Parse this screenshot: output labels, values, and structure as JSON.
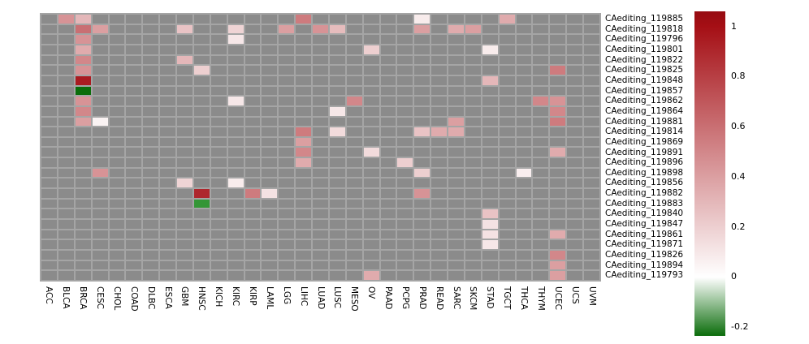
{
  "chart_data": {
    "type": "heatmap",
    "title": "",
    "columns": [
      "ACC",
      "BLCA",
      "BRCA",
      "CESC",
      "CHOL",
      "COAD",
      "DLBC",
      "ESCA",
      "GBM",
      "HNSC",
      "KICH",
      "KIRC",
      "KIRP",
      "LAML",
      "LGG",
      "LIHC",
      "LUAD",
      "LUSC",
      "MESO",
      "OV",
      "PAAD",
      "PCPG",
      "PRAD",
      "READ",
      "SARC",
      "SKCM",
      "STAD",
      "TGCT",
      "THCA",
      "THYM",
      "UCEC",
      "UCS",
      "UVM"
    ],
    "rows": [
      "CAediting_119885",
      "CAediting_119818",
      "CAediting_119796",
      "CAediting_119801",
      "CAediting_119822",
      "CAediting_119825",
      "CAediting_119848",
      "CAediting_119857",
      "CAediting_119862",
      "CAediting_119864",
      "CAediting_119881",
      "CAediting_119814",
      "CAediting_119869",
      "CAediting_119891",
      "CAediting_119896",
      "CAediting_119898",
      "CAediting_119856",
      "CAediting_119882",
      "CAediting_119883",
      "CAediting_119840",
      "CAediting_119847",
      "CAediting_119861",
      "CAediting_119871",
      "CAediting_119826",
      "CAediting_119894",
      "CAediting_119793"
    ],
    "cells": [
      {
        "row": "CAediting_119885",
        "col": "BLCA",
        "value": 0.45,
        "color": "#d79396"
      },
      {
        "row": "CAediting_119885",
        "col": "BRCA",
        "value": 0.3,
        "color": "#e4b7b9"
      },
      {
        "row": "CAediting_119885",
        "col": "LIHC",
        "value": 0.55,
        "color": "#ce7b7e"
      },
      {
        "row": "CAediting_119885",
        "col": "PRAD",
        "value": 0.08,
        "color": "#f8ecec"
      },
      {
        "row": "CAediting_119885",
        "col": "TGCT",
        "value": 0.35,
        "color": "#e0abad"
      },
      {
        "row": "CAediting_119818",
        "col": "BRCA",
        "value": 0.6,
        "color": "#c96f73"
      },
      {
        "row": "CAediting_119818",
        "col": "CESC",
        "value": 0.4,
        "color": "#db9fa1"
      },
      {
        "row": "CAediting_119818",
        "col": "GBM",
        "value": 0.25,
        "color": "#e9c3c5"
      },
      {
        "row": "CAediting_119818",
        "col": "KIRC",
        "value": 0.18,
        "color": "#efd4d5"
      },
      {
        "row": "CAediting_119818",
        "col": "LGG",
        "value": 0.4,
        "color": "#db9fa1"
      },
      {
        "row": "CAediting_119818",
        "col": "LUAD",
        "value": 0.45,
        "color": "#d79396"
      },
      {
        "row": "CAediting_119818",
        "col": "LUSC",
        "value": 0.28,
        "color": "#e6bcbd"
      },
      {
        "row": "CAediting_119818",
        "col": "PRAD",
        "value": 0.4,
        "color": "#db9fa1"
      },
      {
        "row": "CAediting_119818",
        "col": "SARC",
        "value": 0.35,
        "color": "#e0abad"
      },
      {
        "row": "CAediting_119818",
        "col": "SKCM",
        "value": 0.4,
        "color": "#db9fa1"
      },
      {
        "row": "CAediting_119796",
        "col": "BRCA",
        "value": 0.45,
        "color": "#d79396"
      },
      {
        "row": "CAediting_119796",
        "col": "KIRC",
        "value": 0.1,
        "color": "#f6e7e8"
      },
      {
        "row": "CAediting_119801",
        "col": "BRCA",
        "value": 0.35,
        "color": "#e0abad"
      },
      {
        "row": "CAediting_119801",
        "col": "OV",
        "value": 0.2,
        "color": "#edcfd0"
      },
      {
        "row": "CAediting_119801",
        "col": "STAD",
        "value": 0.08,
        "color": "#f8ecec"
      },
      {
        "row": "CAediting_119822",
        "col": "BRCA",
        "value": 0.5,
        "color": "#d2878a"
      },
      {
        "row": "CAediting_119822",
        "col": "GBM",
        "value": 0.3,
        "color": "#e4b7b9"
      },
      {
        "row": "CAediting_119825",
        "col": "BRCA",
        "value": 0.45,
        "color": "#d79396"
      },
      {
        "row": "CAediting_119825",
        "col": "HNSC",
        "value": 0.2,
        "color": "#edcfd0"
      },
      {
        "row": "CAediting_119825",
        "col": "UCEC",
        "value": 0.55,
        "color": "#ce7b7e"
      },
      {
        "row": "CAediting_119848",
        "col": "BRCA",
        "value": 0.95,
        "color": "#aa1b21"
      },
      {
        "row": "CAediting_119848",
        "col": "STAD",
        "value": 0.3,
        "color": "#e4b7b9"
      },
      {
        "row": "CAediting_119857",
        "col": "BRCA",
        "value": -0.3,
        "color": "#0b6d0b"
      },
      {
        "row": "CAediting_119862",
        "col": "BRCA",
        "value": 0.45,
        "color": "#d79396"
      },
      {
        "row": "CAediting_119862",
        "col": "KIRC",
        "value": 0.1,
        "color": "#f6e7e8"
      },
      {
        "row": "CAediting_119862",
        "col": "MESO",
        "value": 0.5,
        "color": "#d2878a"
      },
      {
        "row": "CAediting_119862",
        "col": "THYM",
        "value": 0.5,
        "color": "#d2878a"
      },
      {
        "row": "CAediting_119862",
        "col": "UCEC",
        "value": 0.45,
        "color": "#d79396"
      },
      {
        "row": "CAediting_119864",
        "col": "BRCA",
        "value": 0.5,
        "color": "#d2878a"
      },
      {
        "row": "CAediting_119864",
        "col": "LUSC",
        "value": 0.1,
        "color": "#f6e7e8"
      },
      {
        "row": "CAediting_119864",
        "col": "UCEC",
        "value": 0.5,
        "color": "#d2878a"
      },
      {
        "row": "CAediting_119881",
        "col": "BRCA",
        "value": 0.4,
        "color": "#db9fa1"
      },
      {
        "row": "CAediting_119881",
        "col": "CESC",
        "value": 0.05,
        "color": "#faf3f3"
      },
      {
        "row": "CAediting_119881",
        "col": "SARC",
        "value": 0.4,
        "color": "#db9fa1"
      },
      {
        "row": "CAediting_119881",
        "col": "UCEC",
        "value": 0.55,
        "color": "#ce7b7e"
      },
      {
        "row": "CAediting_119814",
        "col": "LIHC",
        "value": 0.55,
        "color": "#ce7b7e"
      },
      {
        "row": "CAediting_119814",
        "col": "LUSC",
        "value": 0.15,
        "color": "#f2dbdc"
      },
      {
        "row": "CAediting_119814",
        "col": "PRAD",
        "value": 0.25,
        "color": "#e9c3c5"
      },
      {
        "row": "CAediting_119814",
        "col": "READ",
        "value": 0.35,
        "color": "#e0abad"
      },
      {
        "row": "CAediting_119814",
        "col": "SARC",
        "value": 0.35,
        "color": "#e0abad"
      },
      {
        "row": "CAediting_119869",
        "col": "LIHC",
        "value": 0.4,
        "color": "#db9fa1"
      },
      {
        "row": "CAediting_119891",
        "col": "LIHC",
        "value": 0.5,
        "color": "#d2878a"
      },
      {
        "row": "CAediting_119891",
        "col": "OV",
        "value": 0.15,
        "color": "#f2dbdc"
      },
      {
        "row": "CAediting_119891",
        "col": "UCEC",
        "value": 0.35,
        "color": "#e0abad"
      },
      {
        "row": "CAediting_119896",
        "col": "LIHC",
        "value": 0.35,
        "color": "#e0abad"
      },
      {
        "row": "CAediting_119896",
        "col": "PCPG",
        "value": 0.2,
        "color": "#edcfd0"
      },
      {
        "row": "CAediting_119898",
        "col": "CESC",
        "value": 0.45,
        "color": "#d79396"
      },
      {
        "row": "CAediting_119898",
        "col": "PRAD",
        "value": 0.2,
        "color": "#edcfd0"
      },
      {
        "row": "CAediting_119898",
        "col": "THCA",
        "value": 0.07,
        "color": "#f9eeef"
      },
      {
        "row": "CAediting_119856",
        "col": "GBM",
        "value": 0.18,
        "color": "#efd4d5"
      },
      {
        "row": "CAediting_119856",
        "col": "KIRC",
        "value": 0.08,
        "color": "#f8ecec"
      },
      {
        "row": "CAediting_119882",
        "col": "HNSC",
        "value": 0.9,
        "color": "#ae272d"
      },
      {
        "row": "CAediting_119882",
        "col": "KIRP",
        "value": 0.55,
        "color": "#ce7b7e"
      },
      {
        "row": "CAediting_119882",
        "col": "LAML",
        "value": 0.12,
        "color": "#f4e2e3"
      },
      {
        "row": "CAediting_119882",
        "col": "PRAD",
        "value": 0.45,
        "color": "#d79396"
      },
      {
        "row": "CAediting_119883",
        "col": "HNSC",
        "value": -0.25,
        "color": "#349636"
      },
      {
        "row": "CAediting_119840",
        "col": "STAD",
        "value": 0.25,
        "color": "#e9c3c5"
      },
      {
        "row": "CAediting_119847",
        "col": "STAD",
        "value": 0.12,
        "color": "#f4e2e3"
      },
      {
        "row": "CAediting_119861",
        "col": "STAD",
        "value": 0.12,
        "color": "#f4e2e3"
      },
      {
        "row": "CAediting_119861",
        "col": "UCEC",
        "value": 0.35,
        "color": "#e0abad"
      },
      {
        "row": "CAediting_119871",
        "col": "STAD",
        "value": 0.1,
        "color": "#f6e7e8"
      },
      {
        "row": "CAediting_119826",
        "col": "UCEC",
        "value": 0.5,
        "color": "#d2878a"
      },
      {
        "row": "CAediting_119894",
        "col": "UCEC",
        "value": 0.4,
        "color": "#db9fa1"
      },
      {
        "row": "CAediting_119793",
        "col": "OV",
        "value": 0.35,
        "color": "#e0abad"
      },
      {
        "row": "CAediting_119793",
        "col": "UCEC",
        "value": 0.4,
        "color": "#db9fa1"
      }
    ],
    "colorbar": {
      "tick_labels": [
        "1",
        "0.8",
        "0.6",
        "0.4",
        "0.2",
        "0",
        "-0.2"
      ],
      "tick_values": [
        1,
        0.8,
        0.6,
        0.4,
        0.2,
        0,
        -0.2
      ],
      "scale_max": 1.06,
      "scale_min": -0.235,
      "max_color": "#960b11",
      "positive_color": "#a50f15",
      "zero_color": "#ffffff",
      "min_color": "#0b6d0b",
      "legend_position": "right"
    },
    "colors": {
      "na_cell": "#8b8b8b",
      "grid_gap": "#a5a5a5",
      "background": "#ffffff",
      "label_text": "#000000"
    },
    "grid": "on",
    "xlabel": "",
    "ylabel": ""
  }
}
